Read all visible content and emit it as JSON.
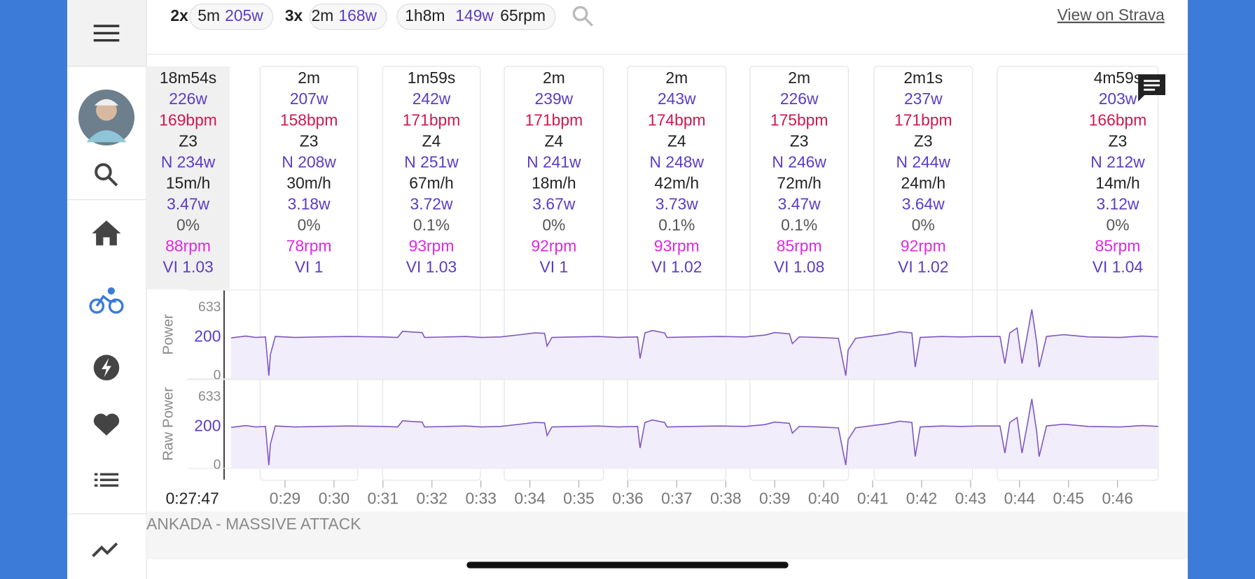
{
  "header": {
    "chips": [
      {
        "count": "2x",
        "duration": "5m",
        "power": "205w"
      },
      {
        "count": "3x",
        "duration": "2m",
        "power": "168w"
      },
      {
        "duration": "1h8m",
        "power": "149w",
        "cadence": "65rpm"
      }
    ],
    "link": "View on Strava"
  },
  "intervals": [
    [
      "18m54s",
      "226w",
      "169bpm",
      "Z3",
      "N 234w",
      "15m/h",
      "3.47w",
      "0%",
      "88rpm",
      "VI 1.03"
    ],
    [
      "2m",
      "207w",
      "158bpm",
      "Z3",
      "N 208w",
      "30m/h",
      "3.18w",
      "0%",
      "78rpm",
      "VI 1"
    ],
    [
      "1m59s",
      "242w",
      "171bpm",
      "Z4",
      "N 251w",
      "67m/h",
      "3.72w",
      "0.1%",
      "93rpm",
      "VI 1.03"
    ],
    [
      "2m",
      "239w",
      "171bpm",
      "Z4",
      "N 241w",
      "18m/h",
      "3.67w",
      "0%",
      "92rpm",
      "VI 1"
    ],
    [
      "2m",
      "243w",
      "174bpm",
      "Z4",
      "N 248w",
      "42m/h",
      "3.73w",
      "0.1%",
      "93rpm",
      "VI 1.02"
    ],
    [
      "2m",
      "226w",
      "175bpm",
      "Z3",
      "N 246w",
      "72m/h",
      "3.47w",
      "0.1%",
      "85rpm",
      "VI 1.08"
    ],
    [
      "2m1s",
      "237w",
      "171bpm",
      "Z3",
      "N 244w",
      "24m/h",
      "3.64w",
      "0%",
      "92rpm",
      "VI 1.02"
    ],
    [
      "4m59s",
      "203w",
      "166bpm",
      "Z3",
      "N 212w",
      "14m/h",
      "3.12w",
      "0%",
      "85rpm",
      "VI 1.04"
    ]
  ],
  "chart_data": [
    {
      "type": "line",
      "ylabel": "Power",
      "scale": "sqrt",
      "ylim": [
        0,
        633
      ],
      "yticks": [
        633,
        200,
        0
      ],
      "xlim": [
        27.87,
        46.83
      ],
      "series": [
        {
          "color": "#7e57c2",
          "x": [
            27.9,
            28.2,
            28.4,
            28.6,
            28.67,
            28.7,
            28.8,
            29.2,
            29.7,
            30.3,
            31.0,
            31.3,
            31.4,
            31.6,
            31.8,
            31.85,
            32.3,
            32.7,
            33.0,
            33.4,
            33.8,
            34.1,
            34.3,
            34.35,
            34.45,
            34.9,
            35.4,
            35.8,
            36.2,
            36.25,
            36.35,
            36.5,
            36.75,
            36.8,
            37.3,
            37.9,
            38.4,
            38.8,
            39.0,
            39.3,
            39.36,
            39.5,
            39.9,
            40.3,
            40.45,
            40.5,
            40.65,
            41.0,
            41.3,
            41.55,
            41.8,
            41.87,
            41.97,
            42.4,
            42.8,
            43.2,
            43.6,
            43.7,
            43.8,
            43.95,
            44.05,
            44.15,
            44.25,
            44.35,
            44.4,
            44.55,
            44.9,
            45.4,
            46.05,
            46.5,
            46.83
          ],
          "values": [
            195,
            215,
            200,
            205,
            0,
            60,
            210,
            200,
            205,
            210,
            205,
            200,
            270,
            260,
            255,
            200,
            205,
            210,
            200,
            205,
            230,
            250,
            245,
            120,
            200,
            205,
            210,
            200,
            205,
            40,
            250,
            280,
            250,
            200,
            205,
            210,
            205,
            225,
            255,
            240,
            140,
            205,
            200,
            190,
            0,
            90,
            190,
            215,
            235,
            265,
            250,
            10,
            200,
            210,
            205,
            210,
            210,
            20,
            250,
            310,
            20,
            200,
            600,
            150,
            10,
            210,
            230,
            205,
            200,
            215,
            205
          ]
        }
      ]
    },
    {
      "type": "line",
      "ylabel": "Raw Power",
      "scale": "sqrt",
      "ylim": [
        0,
        633
      ],
      "yticks": [
        633,
        200,
        0
      ],
      "xlim": [
        27.87,
        46.83
      ],
      "xticks": [
        {
          "value": 29,
          "label": "0:29"
        },
        {
          "value": 30,
          "label": "0:30"
        },
        {
          "value": 31,
          "label": "0:31"
        },
        {
          "value": 32,
          "label": "0:32"
        },
        {
          "value": 33,
          "label": "0:33"
        },
        {
          "value": 34,
          "label": "0:34"
        },
        {
          "value": 35,
          "label": "0:35"
        },
        {
          "value": 36,
          "label": "0:36"
        },
        {
          "value": 37,
          "label": "0:37"
        },
        {
          "value": 38,
          "label": "0:38"
        },
        {
          "value": 39,
          "label": "0:39"
        },
        {
          "value": 40,
          "label": "0:40"
        },
        {
          "value": 41,
          "label": "0:41"
        },
        {
          "value": 42,
          "label": "0:42"
        },
        {
          "value": 43,
          "label": "0:43"
        },
        {
          "value": 44,
          "label": "0:44"
        },
        {
          "value": 45,
          "label": "0:45"
        },
        {
          "value": 46,
          "label": "0:46"
        }
      ],
      "series": [
        {
          "color": "#7e57c2",
          "x": [
            27.9,
            28.2,
            28.4,
            28.6,
            28.67,
            28.7,
            28.8,
            29.2,
            29.7,
            30.3,
            31.0,
            31.3,
            31.4,
            31.6,
            31.8,
            31.85,
            32.3,
            32.7,
            33.0,
            33.4,
            33.8,
            34.1,
            34.3,
            34.35,
            34.45,
            34.9,
            35.4,
            35.8,
            36.2,
            36.25,
            36.35,
            36.5,
            36.75,
            36.8,
            37.3,
            37.9,
            38.4,
            38.8,
            39.0,
            39.3,
            39.36,
            39.5,
            39.9,
            40.3,
            40.45,
            40.5,
            40.65,
            41.0,
            41.3,
            41.55,
            41.8,
            41.87,
            41.97,
            42.4,
            42.8,
            43.2,
            43.6,
            43.7,
            43.8,
            43.95,
            44.05,
            44.15,
            44.25,
            44.35,
            44.4,
            44.55,
            44.9,
            45.4,
            46.05,
            46.5,
            46.83
          ],
          "values": [
            195,
            215,
            200,
            205,
            0,
            60,
            210,
            200,
            205,
            210,
            205,
            200,
            270,
            260,
            255,
            200,
            205,
            210,
            200,
            205,
            230,
            250,
            245,
            120,
            200,
            205,
            210,
            200,
            205,
            40,
            250,
            280,
            250,
            200,
            205,
            210,
            205,
            225,
            255,
            240,
            140,
            205,
            200,
            190,
            0,
            90,
            190,
            215,
            235,
            265,
            250,
            10,
            200,
            210,
            205,
            210,
            210,
            20,
            250,
            310,
            20,
            200,
            600,
            150,
            10,
            210,
            230,
            205,
            200,
            215,
            205
          ]
        }
      ]
    }
  ],
  "start_time": "0:27:47",
  "track": "ANKADA - MASSIVE ATTACK"
}
